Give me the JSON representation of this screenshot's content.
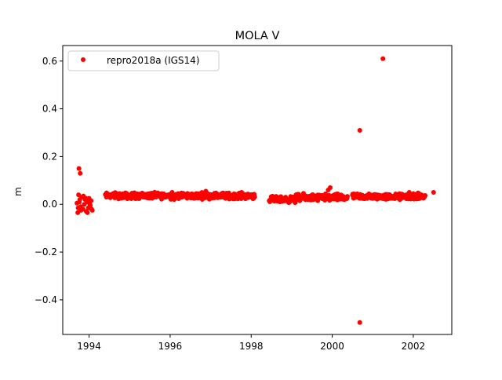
{
  "chart_data": {
    "type": "scatter",
    "title": "MOLA V",
    "xlabel": "",
    "ylabel": "m",
    "xlim": [
      1993.35,
      2002.95
    ],
    "ylim": [
      -0.545,
      0.665
    ],
    "xticks": [
      1994,
      1996,
      1998,
      2000,
      2002
    ],
    "xtick_labels": [
      "1994",
      "1996",
      "1998",
      "2000",
      "2002"
    ],
    "yticks": [
      -0.4,
      -0.2,
      0.0,
      0.2,
      0.4,
      0.6
    ],
    "ytick_labels": [
      "−0.4",
      "−0.2",
      "0.0",
      "0.2",
      "0.4",
      "0.6"
    ],
    "grid": false,
    "legend_position": "top-left",
    "series": [
      {
        "name": "repro2018a (IGS14)",
        "color": "#ff0000",
        "marker": "circle",
        "points": [
          [
            1993.75,
            0.15
          ],
          [
            1993.78,
            0.13
          ],
          [
            1993.72,
            -0.035
          ],
          [
            1993.8,
            -0.025
          ],
          [
            1993.74,
            0.04
          ],
          [
            1993.76,
            0.01
          ],
          [
            1993.79,
            -0.01
          ],
          [
            1993.82,
            0.03
          ],
          [
            1993.85,
            -0.02
          ],
          [
            1993.88,
            0.0
          ],
          [
            1993.9,
            0.02
          ],
          [
            1993.93,
            -0.03
          ],
          [
            1993.95,
            0.01
          ],
          [
            1993.98,
            -0.015
          ],
          [
            1994.0,
            0.025
          ],
          [
            1994.03,
            -0.005
          ],
          [
            1994.05,
            0.015
          ],
          [
            1994.08,
            -0.025
          ],
          [
            1993.86,
            0.035
          ],
          [
            1993.96,
            -0.035
          ],
          [
            1993.7,
            0.005
          ],
          [
            1993.73,
            -0.015
          ],
          [
            1993.77,
            0.02
          ],
          [
            1994.02,
            0.0
          ],
          [
            1994.06,
            -0.02
          ],
          [
            1993.92,
            0.025
          ],
          [
            1994.45,
            0.04
          ],
          [
            1994.6,
            0.035
          ],
          [
            1994.75,
            0.045
          ],
          [
            1994.9,
            0.03
          ],
          [
            1995.05,
            0.035
          ],
          [
            1995.2,
            0.04
          ],
          [
            1995.35,
            0.03
          ],
          [
            1995.5,
            0.035
          ],
          [
            1995.65,
            0.03
          ],
          [
            1995.8,
            0.035
          ],
          [
            1995.95,
            0.04
          ],
          [
            1996.05,
            0.05
          ],
          [
            1996.1,
            0.02
          ],
          [
            1996.2,
            0.045
          ],
          [
            1996.3,
            0.04
          ],
          [
            1996.45,
            0.035
          ],
          [
            1996.6,
            0.04
          ],
          [
            1996.75,
            0.03
          ],
          [
            1996.88,
            0.055
          ],
          [
            1996.95,
            0.04
          ],
          [
            1997.05,
            0.035
          ],
          [
            1997.15,
            0.045
          ],
          [
            1997.25,
            0.03
          ],
          [
            1997.4,
            0.04
          ],
          [
            1997.55,
            0.035
          ],
          [
            1997.7,
            0.04
          ],
          [
            1997.85,
            0.035
          ],
          [
            1998.0,
            0.04
          ],
          [
            1998.07,
            0.03
          ],
          [
            1998.5,
            0.025
          ],
          [
            1998.6,
            0.015
          ],
          [
            1998.72,
            0.02
          ],
          [
            1998.85,
            0.03
          ],
          [
            1998.95,
            0.01
          ],
          [
            1999.05,
            0.02
          ],
          [
            1999.2,
            0.015
          ],
          [
            1999.35,
            0.025
          ],
          [
            1999.5,
            0.02
          ],
          [
            1999.62,
            0.03
          ],
          [
            1999.75,
            0.035
          ],
          [
            1999.9,
            0.06
          ],
          [
            1999.95,
            0.07
          ],
          [
            2000.05,
            0.04
          ],
          [
            2000.15,
            0.03
          ],
          [
            2000.25,
            0.035
          ],
          [
            2000.35,
            0.03
          ],
          [
            2000.68,
            0.31
          ],
          [
            2000.68,
            -0.495
          ],
          [
            2001.25,
            0.61
          ],
          [
            2000.55,
            0.03
          ],
          [
            2000.7,
            0.025
          ],
          [
            2000.85,
            0.035
          ],
          [
            2001.0,
            0.03
          ],
          [
            2001.15,
            0.025
          ],
          [
            2001.3,
            0.03
          ],
          [
            2001.45,
            0.025
          ],
          [
            2001.6,
            0.03
          ],
          [
            2001.75,
            0.04
          ],
          [
            2001.9,
            0.05
          ],
          [
            2002.0,
            0.045
          ],
          [
            2002.1,
            0.035
          ],
          [
            2002.2,
            0.04
          ],
          [
            2002.25,
            0.03
          ],
          [
            2002.5,
            0.05
          ]
        ],
        "dense_segments": [
          {
            "x_start": 1994.4,
            "x_end": 1998.1,
            "center": 0.036,
            "spread": 0.012
          },
          {
            "x_start": 1998.45,
            "x_end": 1999.1,
            "center": 0.02,
            "spread": 0.012
          },
          {
            "x_start": 1999.1,
            "x_end": 2000.38,
            "center": 0.028,
            "spread": 0.014
          },
          {
            "x_start": 2000.5,
            "x_end": 2002.3,
            "center": 0.032,
            "spread": 0.012
          }
        ]
      }
    ]
  }
}
